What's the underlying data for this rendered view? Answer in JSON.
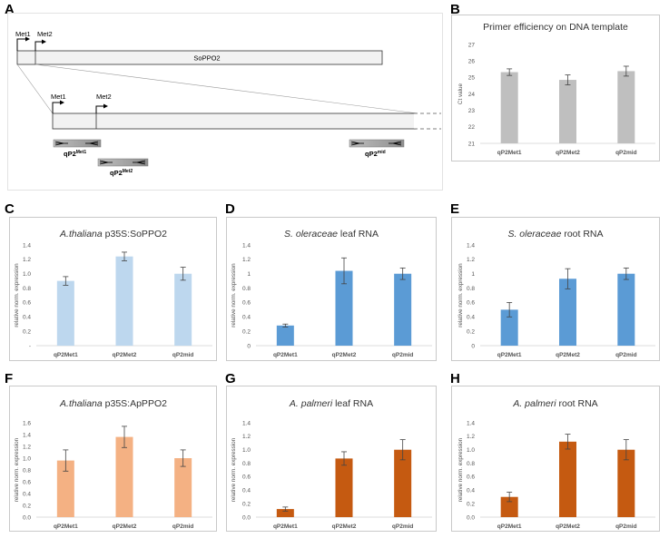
{
  "panels": {
    "A": "A",
    "B": "B",
    "C": "C",
    "D": "D",
    "E": "E",
    "F": "F",
    "G": "G",
    "H": "H"
  },
  "diagram": {
    "gene_label": "SoPPO2",
    "met1": "Met1",
    "met2": "Met2",
    "primers": [
      {
        "name": "qP2",
        "sup": "Met1"
      },
      {
        "name": "qP2",
        "sup": "Met2"
      },
      {
        "name": "qP2",
        "sup": "mid"
      }
    ]
  },
  "chart_data": [
    {
      "id": "B",
      "type": "bar",
      "title": "Primer efficiency on DNA template",
      "ylabel": "Ct value",
      "categories": [
        "qP2Met1",
        "qP2Met2",
        "qP2mid"
      ],
      "values": [
        25.32,
        24.85,
        25.38
      ],
      "errors": [
        0.2,
        0.3,
        0.3
      ],
      "ylim": [
        21,
        27
      ],
      "yticks": [
        "21",
        "22",
        "23",
        "24",
        "25",
        "26",
        "27"
      ],
      "color": "#bfbfbf"
    },
    {
      "id": "C",
      "type": "bar",
      "title_italic": "A.thaliana",
      "title_rest": " p35S:SoPPO2",
      "ylabel": "relative norm. expression",
      "categories": [
        "qP2Met1",
        "qP2Met2",
        "qP2mid"
      ],
      "values": [
        0.9,
        1.24,
        1.0
      ],
      "errors": [
        0.06,
        0.06,
        0.09
      ],
      "ylim": [
        0,
        1.4
      ],
      "yticks": [
        "-",
        "0.2",
        "0.4",
        "0.6",
        "0.8",
        "1.0",
        "1.2",
        "1.4"
      ],
      "color": "#bdd7ee"
    },
    {
      "id": "D",
      "type": "bar",
      "title_italic": "S. oleraceae",
      "title_rest": " leaf RNA",
      "ylabel": "relative norm. expression",
      "categories": [
        "qP2Met1",
        "qP2Met2",
        "qP2mid"
      ],
      "values": [
        0.28,
        1.04,
        1.0
      ],
      "errors": [
        0.02,
        0.18,
        0.08
      ],
      "ylim": [
        0,
        1.4
      ],
      "yticks": [
        "0",
        "0.2",
        "0.4",
        "0.6",
        "0.8",
        "1",
        "1.2",
        "1.4"
      ],
      "color": "#5b9bd5"
    },
    {
      "id": "E",
      "type": "bar",
      "title_italic": "S. oleraceae",
      "title_rest": " root RNA",
      "ylabel": "relative norm. expression",
      "categories": [
        "qP2Met1",
        "qP2Met2",
        "qP2mid"
      ],
      "values": [
        0.5,
        0.93,
        1.0
      ],
      "errors": [
        0.1,
        0.14,
        0.08
      ],
      "ylim": [
        0,
        1.4
      ],
      "yticks": [
        "0",
        "0.2",
        "0.4",
        "0.6",
        "0.8",
        "1",
        "1.2",
        "1.4"
      ],
      "color": "#5b9bd5"
    },
    {
      "id": "F",
      "type": "bar",
      "title_italic": "A.thaliana",
      "title_rest": " p35S:ApPPO2",
      "ylabel": "relative norm. expression",
      "categories": [
        "qP2Met1",
        "qP2Met2",
        "qP2mid"
      ],
      "values": [
        0.96,
        1.36,
        1.0
      ],
      "errors": [
        0.18,
        0.18,
        0.14
      ],
      "ylim": [
        0,
        1.6
      ],
      "yticks": [
        "0.0",
        "0.2",
        "0.4",
        "0.6",
        "0.8",
        "1.0",
        "1.2",
        "1.4",
        "1.6"
      ],
      "color": "#f4b183"
    },
    {
      "id": "G",
      "type": "bar",
      "title_italic": "A. palmeri",
      "title_rest": " leaf RNA",
      "ylabel": "relative norm. expression",
      "categories": [
        "qP2Met1",
        "qP2Met2",
        "qP2mid"
      ],
      "values": [
        0.12,
        0.87,
        1.0
      ],
      "errors": [
        0.03,
        0.1,
        0.15
      ],
      "ylim": [
        0,
        1.4
      ],
      "yticks": [
        "0.0",
        "0.2",
        "0.4",
        "0.6",
        "0.8",
        "1.0",
        "1.2",
        "1.4"
      ],
      "color": "#c55a11"
    },
    {
      "id": "H",
      "type": "bar",
      "title_italic": "A. palmeri",
      "title_rest": " root RNA",
      "ylabel": "relative norm. expression",
      "categories": [
        "qP2Met1",
        "qP2Met2",
        "qP2mid"
      ],
      "values": [
        0.3,
        1.12,
        1.0
      ],
      "errors": [
        0.07,
        0.11,
        0.15
      ],
      "ylim": [
        0,
        1.4
      ],
      "yticks": [
        "0.0",
        "0.2",
        "0.4",
        "0.6",
        "0.8",
        "1.0",
        "1.2",
        "1.4"
      ],
      "color": "#c55a11"
    }
  ]
}
